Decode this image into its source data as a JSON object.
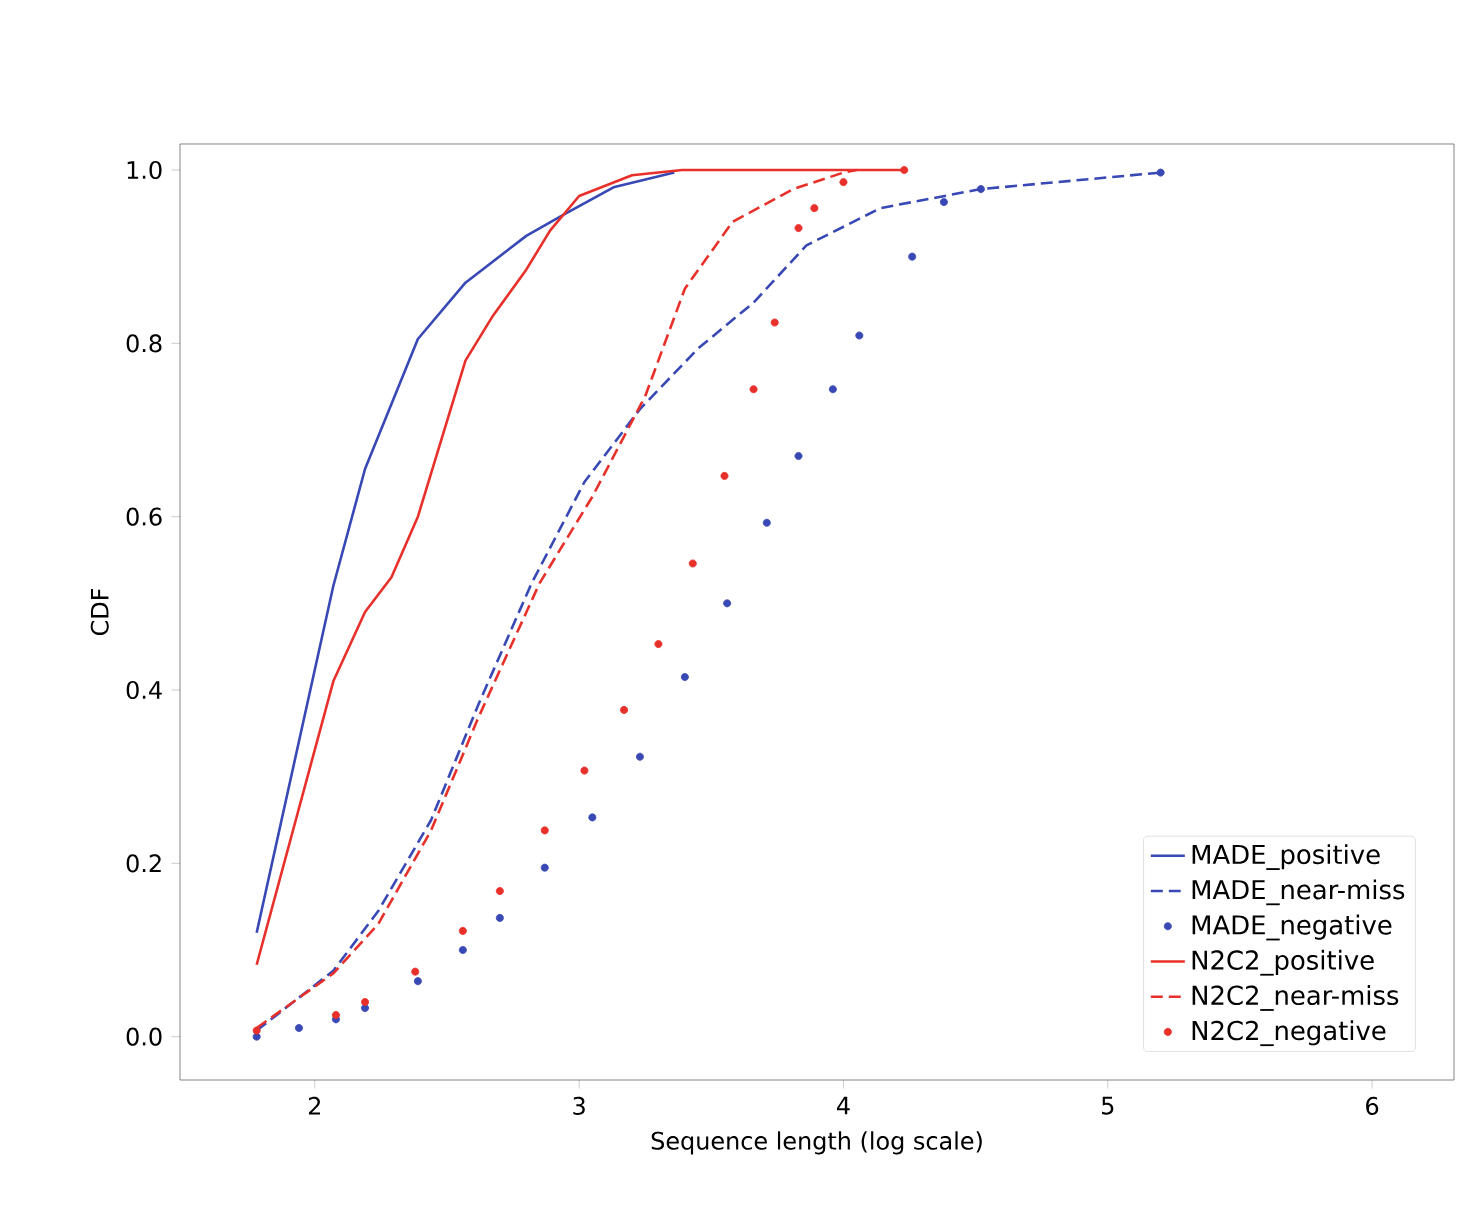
{
  "chart_data": {
    "type": "line",
    "xlabel": "Sequence length (log scale)",
    "ylabel": "CDF",
    "xlim": [
      1.49,
      6.31
    ],
    "ylim": [
      -0.05,
      1.03
    ],
    "xticks": [
      2,
      3,
      4,
      5,
      6
    ],
    "yticks": [
      {
        "value": 0,
        "label": "0.0"
      },
      {
        "value": 0.2,
        "label": "0.2"
      },
      {
        "value": 0.4,
        "label": "0.4"
      },
      {
        "value": 0.6,
        "label": "0.6"
      },
      {
        "value": 0.8,
        "label": "0.8"
      },
      {
        "value": 1,
        "label": "1.0"
      }
    ],
    "legend": "bottom right",
    "series": [
      {
        "name": "MADE_positive",
        "color": "#3848b4",
        "line_style": "solid",
        "x": [
          1.78,
          2.07,
          2.19,
          2.39,
          2.57,
          2.8,
          2.95,
          3.13,
          3.36
        ],
        "values": [
          0.12,
          0.52,
          0.655,
          0.805,
          0.87,
          0.924,
          0.95,
          0.98,
          0.997
        ]
      },
      {
        "name": "MADE_near-miss",
        "color": "#3848b4",
        "line_style": "dashed",
        "x": [
          1.78,
          2.07,
          2.24,
          2.44,
          2.62,
          2.82,
          3.02,
          3.23,
          3.45,
          3.66,
          3.86,
          4.14,
          4.52,
          5.2
        ],
        "values": [
          0.007,
          0.076,
          0.145,
          0.25,
          0.384,
          0.523,
          0.64,
          0.724,
          0.794,
          0.847,
          0.913,
          0.956,
          0.978,
          0.997
        ]
      },
      {
        "name": "MADE_negative",
        "color": "#3848b4",
        "type": "scatter",
        "marker": "circle",
        "x": [
          1.78,
          1.94,
          2.08,
          2.19,
          2.39,
          2.56,
          2.7,
          2.87,
          3.05,
          3.23,
          3.4,
          3.56,
          3.71,
          3.83,
          3.96,
          4.06,
          4.26,
          4.38,
          4.52,
          5.2
        ],
        "values": [
          0.0,
          0.01,
          0.02,
          0.033,
          0.064,
          0.1,
          0.137,
          0.195,
          0.253,
          0.323,
          0.415,
          0.5,
          0.593,
          0.67,
          0.747,
          0.809,
          0.9,
          0.963,
          0.978,
          0.997
        ]
      },
      {
        "name": "N2C2_positive",
        "color": "#e8302a",
        "line_style": "solid",
        "x": [
          1.78,
          2.07,
          2.19,
          2.29,
          2.39,
          2.57,
          2.67,
          2.8,
          2.89,
          3.0,
          3.2,
          3.39,
          4.23
        ],
        "values": [
          0.083,
          0.41,
          0.49,
          0.53,
          0.6,
          0.78,
          0.83,
          0.885,
          0.93,
          0.97,
          0.994,
          1.0,
          1.0
        ]
      },
      {
        "name": "N2C2_near-miss",
        "color": "#e8302a",
        "line_style": "dashed",
        "x": [
          1.78,
          2.07,
          2.24,
          2.44,
          2.62,
          2.85,
          3.05,
          3.25,
          3.4,
          3.58,
          3.81,
          4.0,
          4.05
        ],
        "values": [
          0.01,
          0.073,
          0.13,
          0.238,
          0.369,
          0.523,
          0.623,
          0.739,
          0.863,
          0.94,
          0.978,
          0.997,
          1.0
        ]
      },
      {
        "name": "N2C2_negative",
        "color": "#e8302a",
        "type": "scatter",
        "marker": "circle",
        "x": [
          1.78,
          2.08,
          2.19,
          2.38,
          2.56,
          2.7,
          2.87,
          3.02,
          3.17,
          3.3,
          3.43,
          3.55,
          3.66,
          3.74,
          3.83,
          3.89,
          4.0,
          4.23
        ],
        "values": [
          0.007,
          0.025,
          0.04,
          0.075,
          0.122,
          0.168,
          0.238,
          0.307,
          0.377,
          0.453,
          0.546,
          0.647,
          0.747,
          0.824,
          0.933,
          0.956,
          0.986,
          1.0
        ]
      }
    ]
  }
}
